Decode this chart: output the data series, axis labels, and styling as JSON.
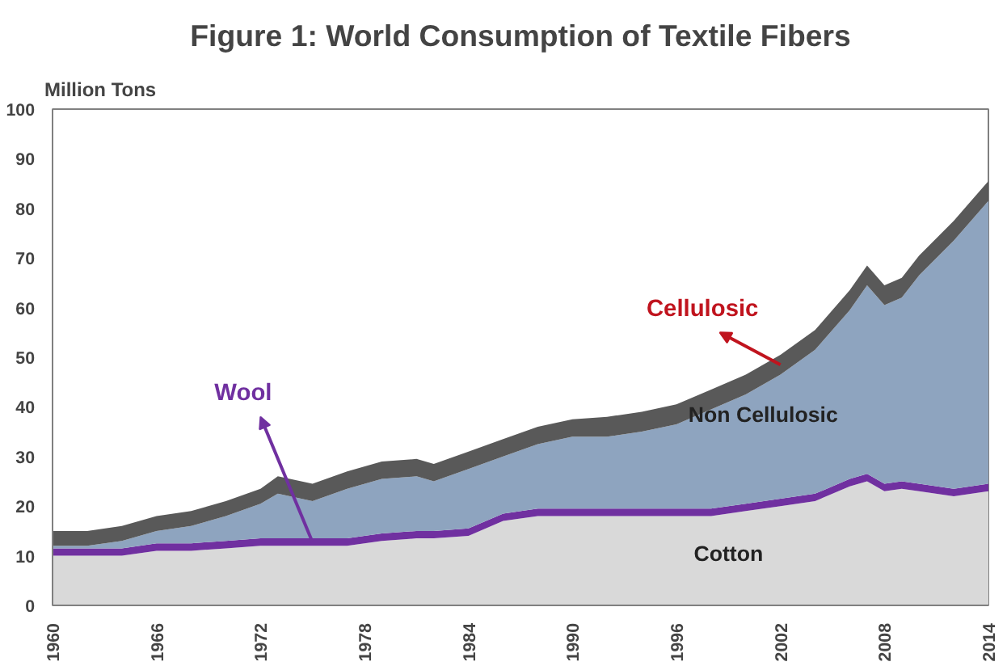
{
  "chart_data": {
    "type": "area",
    "stacked": true,
    "title": "Figure 1: World Consumption of Textile Fibers",
    "ylabel": "Million Tons",
    "x": [
      1960,
      1962,
      1964,
      1966,
      1968,
      1970,
      1972,
      1973,
      1975,
      1977,
      1979,
      1981,
      1982,
      1984,
      1986,
      1988,
      1990,
      1992,
      1994,
      1996,
      1998,
      2000,
      2002,
      2004,
      2006,
      2007,
      2008,
      2009,
      2010,
      2012,
      2014
    ],
    "series": [
      {
        "name": "Cotton",
        "color": "#d9d9d9",
        "values": [
          10,
          10,
          10,
          11,
          11,
          11.5,
          12,
          12,
          12,
          12,
          13,
          13.5,
          13.5,
          14,
          17,
          18,
          18,
          18,
          18,
          18,
          18,
          19,
          20,
          21,
          24,
          25,
          23,
          23.5,
          23,
          22,
          23
        ]
      },
      {
        "name": "Wool",
        "color": "#7030a0",
        "values": [
          1.5,
          1.5,
          1.5,
          1.5,
          1.5,
          1.5,
          1.5,
          1.5,
          1.5,
          1.5,
          1.5,
          1.5,
          1.5,
          1.5,
          1.5,
          1.5,
          1.5,
          1.5,
          1.5,
          1.5,
          1.5,
          1.5,
          1.5,
          1.5,
          1.5,
          1.5,
          1.5,
          1.5,
          1.5,
          1.5,
          1.5
        ]
      },
      {
        "name": "Non Cellulosic",
        "color": "#8ea4bf",
        "values": [
          0.5,
          0.5,
          1.5,
          2.5,
          3.5,
          5,
          7,
          9,
          7.5,
          10,
          11,
          11,
          10,
          12,
          11.5,
          13,
          14.5,
          14.5,
          15.5,
          17,
          20,
          22,
          25,
          29,
          34,
          38,
          36,
          37,
          42,
          50,
          57
        ]
      },
      {
        "name": "Cellulosic",
        "color": "#595959",
        "values": [
          3,
          3,
          3,
          3,
          3,
          3,
          3,
          3.5,
          3.5,
          3.5,
          3.5,
          3.5,
          3.5,
          3.5,
          3.5,
          3.5,
          3.5,
          4,
          4,
          4,
          4,
          4,
          4,
          4,
          4,
          4,
          4,
          4,
          4,
          4,
          4
        ]
      }
    ],
    "xlim": [
      1960,
      2014
    ],
    "xticks": [
      1960,
      1966,
      1972,
      1978,
      1984,
      1990,
      1996,
      2002,
      2008,
      2014
    ],
    "ylim": [
      0,
      100
    ],
    "yticks": [
      0,
      10,
      20,
      30,
      40,
      50,
      60,
      70,
      80,
      90,
      100
    ]
  }
}
